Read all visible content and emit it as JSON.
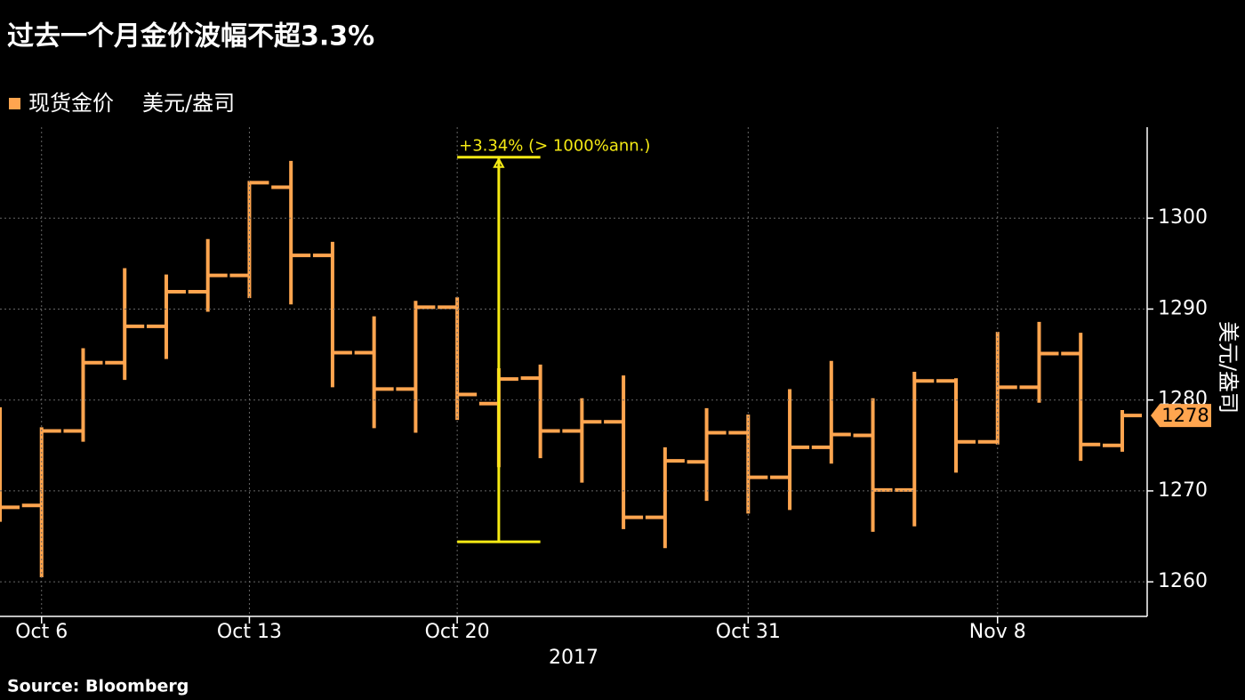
{
  "chart_data": {
    "type": "ohlc",
    "title": "过去一个月金价波幅不超3.3%",
    "y_label": "美元/盎司",
    "x_label": "2017",
    "source": "Source: Bloomberg",
    "categories": [
      null,
      "Oct 6",
      null,
      null,
      null,
      null,
      "Oct 13",
      null,
      null,
      null,
      null,
      "Oct 20",
      null,
      null,
      null,
      null,
      null,
      null,
      "Oct 31",
      null,
      null,
      null,
      null,
      null,
      "Nov 8",
      null,
      null,
      null
    ],
    "series": [
      {
        "name": "现货金价",
        "color": "#ffa54f",
        "open": [
          1272,
          1268.4,
          1276.6,
          1284.1,
          1288.1,
          1291.9,
          1293.7,
          1303.4,
          1295.9,
          1285.2,
          1281.2,
          1290.2,
          1279.6,
          1282.4,
          1276.6,
          1277.6,
          1267.1,
          1273.2,
          1276.4,
          1271.5,
          1274.8,
          1276.1,
          1270.1,
          1282.1,
          1275.4,
          1281.4,
          1285.1,
          1275.0
        ],
        "high": [
          1279.0,
          1276.8,
          1285.5,
          1294.3,
          1293.6,
          1297.5,
          1303.9,
          1306.1,
          1297.2,
          1289.0,
          1290.7,
          1291.1,
          1283.3,
          1283.7,
          1280.0,
          1282.5,
          1274.6,
          1278.9,
          1278.2,
          1281.0,
          1284.1,
          1280.0,
          1282.9,
          1282.2,
          1287.3,
          1288.4,
          1287.2,
          1278.7
        ],
        "low": [
          1266.8,
          1260.7,
          1275.6,
          1282.4,
          1284.7,
          1289.9,
          1291.4,
          1290.7,
          1281.6,
          1277.1,
          1276.6,
          1278.0,
          1272.8,
          1273.8,
          1271.1,
          1266.0,
          1263.9,
          1269.1,
          1267.7,
          1268.1,
          1273.2,
          1265.7,
          1266.3,
          1272.2,
          1275.3,
          1279.9,
          1273.5,
          1274.5
        ],
        "close": [
          1268.2,
          1276.6,
          1284.1,
          1288.1,
          1291.9,
          1293.7,
          1303.9,
          1295.9,
          1285.2,
          1281.2,
          1290.2,
          1280.6,
          1282.3,
          1276.6,
          1277.6,
          1267.1,
          1273.3,
          1276.4,
          1271.5,
          1274.8,
          1276.2,
          1270.1,
          1282.1,
          1275.4,
          1281.4,
          1285.1,
          1275.1,
          1278.3
        ],
        "close_label": "1278"
      }
    ],
    "annotation": {
      "text": "+3.34% (> 1000%ann.)",
      "from": 1264.4,
      "to": 1306.7,
      "color": "#f5ea14"
    },
    "ylim": [
      1256.2,
      1310
    ],
    "yticks": [
      1260,
      1270,
      1280,
      1290,
      1300
    ],
    "grid": true
  }
}
